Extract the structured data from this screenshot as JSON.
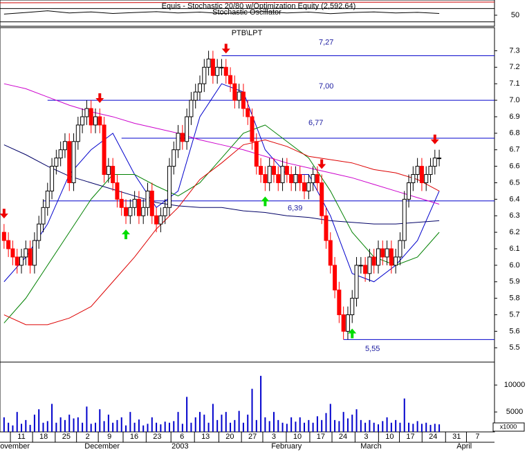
{
  "chart_data": {
    "type": "candlestick",
    "title": "PTB\\LPT",
    "stochastic": {
      "title": "Equis - Stochastic 20/80  w/Optimization Equity (2,592.64)",
      "subtitle": "Stochastic Oscillator",
      "ylim": [
        0,
        100
      ],
      "yticks": [
        50
      ],
      "levels": [
        20,
        80
      ],
      "color": "#000000",
      "x": [
        0,
        5,
        10,
        15,
        20,
        25,
        30,
        35,
        40,
        45,
        50,
        55,
        60,
        65,
        70,
        75,
        80,
        85,
        90,
        95,
        100
      ],
      "values": [
        55,
        62,
        70,
        60,
        65,
        58,
        62,
        66,
        60,
        64,
        58,
        62,
        66,
        60,
        64,
        57,
        62,
        65,
        60,
        63,
        58
      ]
    },
    "xlim": [
      -0.93,
      112.7
    ],
    "xticks": [
      {
        "value": 4,
        "label": "11"
      },
      {
        "value": 9.1,
        "label": "18"
      },
      {
        "value": 14.3,
        "label": "25"
      },
      {
        "value": 19.2,
        "label": "2"
      },
      {
        "value": 24.2,
        "label": "9"
      },
      {
        "value": 29.9,
        "label": "16"
      },
      {
        "value": 35.2,
        "label": "23"
      },
      {
        "value": 40.9,
        "label": "6"
      },
      {
        "value": 46.3,
        "label": "13"
      },
      {
        "value": 51.9,
        "label": "20"
      },
      {
        "value": 57.1,
        "label": "27"
      },
      {
        "value": 62,
        "label": "3"
      },
      {
        "value": 67.4,
        "label": "10"
      },
      {
        "value": 72.8,
        "label": "17"
      },
      {
        "value": 77.9,
        "label": "24"
      },
      {
        "value": 83.2,
        "label": "3"
      },
      {
        "value": 88.6,
        "label": "10"
      },
      {
        "value": 93.4,
        "label": "17"
      },
      {
        "value": 98.6,
        "label": "24"
      },
      {
        "value": 104,
        "label": "31"
      },
      {
        "value": 108.8,
        "label": "7"
      }
    ],
    "month_labels": [
      {
        "value": -0.9,
        "label": "ovember"
      },
      {
        "value": 18.5,
        "label": "December"
      },
      {
        "value": 38.5,
        "label": "2003"
      },
      {
        "value": 61.4,
        "label": "February"
      },
      {
        "value": 81.9,
        "label": "March"
      },
      {
        "value": 104,
        "label": "April"
      }
    ],
    "ylim": [
      5.43,
      7.44
    ],
    "yticks": [
      5.5,
      5.6,
      5.7,
      5.8,
      5.9,
      {
        "value": 6,
        "label": "6.0"
      },
      6.1,
      6.2,
      6.3,
      6.4,
      6.5,
      6.6,
      6.7,
      6.8,
      6.9,
      {
        "value": 7,
        "label": "7.0"
      },
      7.1,
      7.2,
      7.3
    ],
    "up_color": "#ffffff",
    "down_color": "#ff0000",
    "open": [
      6.2,
      6.15,
      6.1,
      6.05,
      6.0,
      6.05,
      6.1,
      6.0,
      6.15,
      6.25,
      6.35,
      6.45,
      6.6,
      6.65,
      6.7,
      6.75,
      6.5,
      6.75,
      6.85,
      6.9,
      6.95,
      6.85,
      6.9,
      6.85,
      6.55,
      6.6,
      6.5,
      6.4,
      6.35,
      6.3,
      6.35,
      6.4,
      6.3,
      6.35,
      6.45,
      6.3,
      6.25,
      6.3,
      6.35,
      6.6,
      6.7,
      6.8,
      6.75,
      6.9,
      7.0,
      7.05,
      7.1,
      7.2,
      7.25,
      7.15,
      7.2,
      7.2,
      7.15,
      7.1,
      7.0,
      7.05,
      6.95,
      6.9,
      6.75,
      6.6,
      6.55,
      6.5,
      6.6,
      6.55,
      6.5,
      6.6,
      6.55,
      6.5,
      6.55,
      6.5,
      6.45,
      6.5,
      6.55,
      6.5,
      6.3,
      6.15,
      6.0,
      5.85,
      5.7,
      5.6,
      5.7,
      5.8,
      6.0,
      6.0,
      5.95,
      6.05,
      6.0,
      6.1,
      6.05,
      6.1,
      6.0,
      6.05,
      6.15,
      6.4,
      6.5,
      6.55,
      6.6,
      6.5,
      6.55,
      6.6,
      6.65
    ],
    "high": [
      6.25,
      6.2,
      6.15,
      6.1,
      6.1,
      6.15,
      6.15,
      6.2,
      6.3,
      6.4,
      6.5,
      6.65,
      6.7,
      6.75,
      6.8,
      6.8,
      6.8,
      6.9,
      6.95,
      7.0,
      7.0,
      6.95,
      6.95,
      6.9,
      6.65,
      6.65,
      6.55,
      6.45,
      6.4,
      6.4,
      6.45,
      6.45,
      6.4,
      6.5,
      6.5,
      6.35,
      6.35,
      6.4,
      6.65,
      6.75,
      6.85,
      6.85,
      6.95,
      7.05,
      7.1,
      7.15,
      7.25,
      7.3,
      7.3,
      7.25,
      7.25,
      7.25,
      7.2,
      7.15,
      7.1,
      7.1,
      7.0,
      6.95,
      6.8,
      6.65,
      6.6,
      6.65,
      6.65,
      6.6,
      6.65,
      6.65,
      6.6,
      6.6,
      6.6,
      6.55,
      6.55,
      6.6,
      6.6,
      6.55,
      6.35,
      6.2,
      6.05,
      5.9,
      5.75,
      5.75,
      5.85,
      6.05,
      6.05,
      6.05,
      6.1,
      6.1,
      6.15,
      6.15,
      6.15,
      6.15,
      6.1,
      6.2,
      6.45,
      6.55,
      6.6,
      6.65,
      6.65,
      6.6,
      6.65,
      6.7,
      6.7
    ],
    "low": [
      6.1,
      6.05,
      6.0,
      5.95,
      5.95,
      6.0,
      5.95,
      5.95,
      6.1,
      6.2,
      6.3,
      6.4,
      6.55,
      6.6,
      6.65,
      6.45,
      6.45,
      6.7,
      6.8,
      6.85,
      6.8,
      6.8,
      6.8,
      6.5,
      6.5,
      6.45,
      6.35,
      6.3,
      6.25,
      6.25,
      6.3,
      6.25,
      6.25,
      6.3,
      6.25,
      6.2,
      6.2,
      6.25,
      6.3,
      6.55,
      6.65,
      6.7,
      6.7,
      6.85,
      6.95,
      7.0,
      7.05,
      7.15,
      7.1,
      7.1,
      7.15,
      7.1,
      7.05,
      6.95,
      6.95,
      6.9,
      6.85,
      6.7,
      6.55,
      6.5,
      6.45,
      6.45,
      6.5,
      6.45,
      6.45,
      6.5,
      6.45,
      6.45,
      6.45,
      6.4,
      6.4,
      6.45,
      6.45,
      6.25,
      6.1,
      5.95,
      5.8,
      5.65,
      5.55,
      5.55,
      5.65,
      5.75,
      5.95,
      5.9,
      5.9,
      5.95,
      5.95,
      6.0,
      6.0,
      5.95,
      5.95,
      6.0,
      6.1,
      6.35,
      6.45,
      6.5,
      6.45,
      6.45,
      6.5,
      6.55,
      6.6
    ],
    "close": [
      6.15,
      6.1,
      6.05,
      6.0,
      6.05,
      6.1,
      6.0,
      6.15,
      6.25,
      6.35,
      6.45,
      6.6,
      6.65,
      6.7,
      6.75,
      6.5,
      6.75,
      6.85,
      6.9,
      6.95,
      6.85,
      6.9,
      6.85,
      6.55,
      6.6,
      6.5,
      6.4,
      6.35,
      6.3,
      6.35,
      6.4,
      6.3,
      6.35,
      6.45,
      6.3,
      6.25,
      6.3,
      6.35,
      6.6,
      6.7,
      6.8,
      6.75,
      6.9,
      7.0,
      7.05,
      7.1,
      7.2,
      7.25,
      7.15,
      7.2,
      7.2,
      7.15,
      7.1,
      7.0,
      7.05,
      6.95,
      6.9,
      6.75,
      6.6,
      6.55,
      6.5,
      6.6,
      6.55,
      6.5,
      6.6,
      6.55,
      6.5,
      6.55,
      6.5,
      6.45,
      6.5,
      6.55,
      6.5,
      6.3,
      6.15,
      6.0,
      5.85,
      5.7,
      5.6,
      5.7,
      5.8,
      6.0,
      6.0,
      5.95,
      6.05,
      6.0,
      6.1,
      6.05,
      6.1,
      6.0,
      6.05,
      6.15,
      6.4,
      6.5,
      6.55,
      6.6,
      6.5,
      6.55,
      6.6,
      6.65,
      6.65
    ],
    "moving_averages": {
      "x": [
        0,
        5,
        10,
        15,
        20,
        25,
        30,
        35,
        40,
        45,
        50,
        55,
        60,
        65,
        70,
        75,
        80,
        85,
        90,
        95,
        100
      ],
      "series": [
        {
          "color": "#0000cc",
          "values": [
            5.9,
            6.05,
            6.25,
            6.55,
            6.7,
            6.8,
            6.55,
            6.35,
            6.45,
            6.9,
            7.1,
            7.05,
            6.7,
            6.55,
            6.55,
            6.3,
            5.95,
            5.9,
            6.0,
            6.15,
            6.45
          ]
        },
        {
          "color": "#008000",
          "values": [
            5.65,
            5.8,
            6.0,
            6.2,
            6.4,
            6.55,
            6.55,
            6.48,
            6.42,
            6.5,
            6.65,
            6.8,
            6.85,
            6.75,
            6.65,
            6.45,
            6.2,
            6.05,
            6.0,
            6.05,
            6.2
          ]
        },
        {
          "color": "#dd0000",
          "values": [
            5.7,
            5.64,
            5.64,
            5.68,
            5.75,
            5.9,
            6.05,
            6.22,
            6.35,
            6.52,
            6.62,
            6.73,
            6.76,
            6.72,
            6.66,
            6.64,
            6.62,
            6.58,
            6.56,
            6.52,
            6.45
          ]
        },
        {
          "color": "#cc00cc",
          "values": [
            7.1,
            7.07,
            7.02,
            6.97,
            6.93,
            6.9,
            6.86,
            6.83,
            6.8,
            6.76,
            6.73,
            6.7,
            6.66,
            6.62,
            6.59,
            6.56,
            6.53,
            6.49,
            6.45,
            6.41,
            6.37
          ]
        },
        {
          "color": "#000066",
          "values": [
            6.73,
            6.67,
            6.6,
            6.54,
            6.5,
            6.46,
            6.42,
            6.38,
            6.36,
            6.35,
            6.35,
            6.33,
            6.32,
            6.3,
            6.29,
            6.27,
            6.26,
            6.25,
            6.25,
            6.26,
            6.27
          ]
        }
      ]
    },
    "levels": [
      {
        "value": 7.27,
        "label": "7,27",
        "start": 50
      },
      {
        "value": 7,
        "label": "7,00",
        "start": 10
      },
      {
        "value": 6.77,
        "label": "6,77",
        "start": 27
      },
      {
        "value": 6.39,
        "label": "6,39",
        "start": 9
      },
      {
        "value": 5.55,
        "label": "5,55",
        "start": 78
      }
    ],
    "level_color": "#0000cc",
    "sell_signals": [
      0,
      22,
      51,
      73,
      99
    ],
    "buy_signals": [
      28,
      60,
      80
    ],
    "sell_color": "#ee0000",
    "buy_color": "#00dd00",
    "volume": {
      "ylim": [
        1300,
        14000
      ],
      "yticks": [
        5000,
        10000
      ],
      "unit_label": "x1000",
      "color": "#0000cc",
      "values": [
        4000,
        3000,
        2500,
        5000,
        2800,
        3500,
        2600,
        4500,
        5500,
        3000,
        3300,
        6500,
        3000,
        4000,
        3500,
        4500,
        3800,
        4000,
        3000,
        6000,
        2800,
        3000,
        5500,
        3300,
        4500,
        3000,
        3500,
        4000,
        2500,
        5000,
        3000,
        3600,
        2500,
        2800,
        4000,
        3000,
        2700,
        3200,
        3000,
        3300,
        5000,
        2800,
        7800,
        3000,
        4000,
        5000,
        4500,
        3000,
        6500,
        3500,
        4500,
        5000,
        3000,
        3500,
        5200,
        3000,
        4500,
        9300,
        3500,
        11700,
        4000,
        3300,
        5000,
        3500,
        3000,
        2800,
        4000,
        3200,
        4000,
        3000,
        3500,
        3000,
        4200,
        3500,
        4800,
        6500,
        3500,
        3300,
        5000,
        3800,
        4500,
        5500,
        3500,
        3000,
        3500,
        3000,
        2700,
        3300,
        4000,
        3000,
        3500,
        3000,
        7500,
        3000,
        2800,
        3300,
        2800,
        3000,
        2600,
        2800,
        2700
      ]
    }
  }
}
